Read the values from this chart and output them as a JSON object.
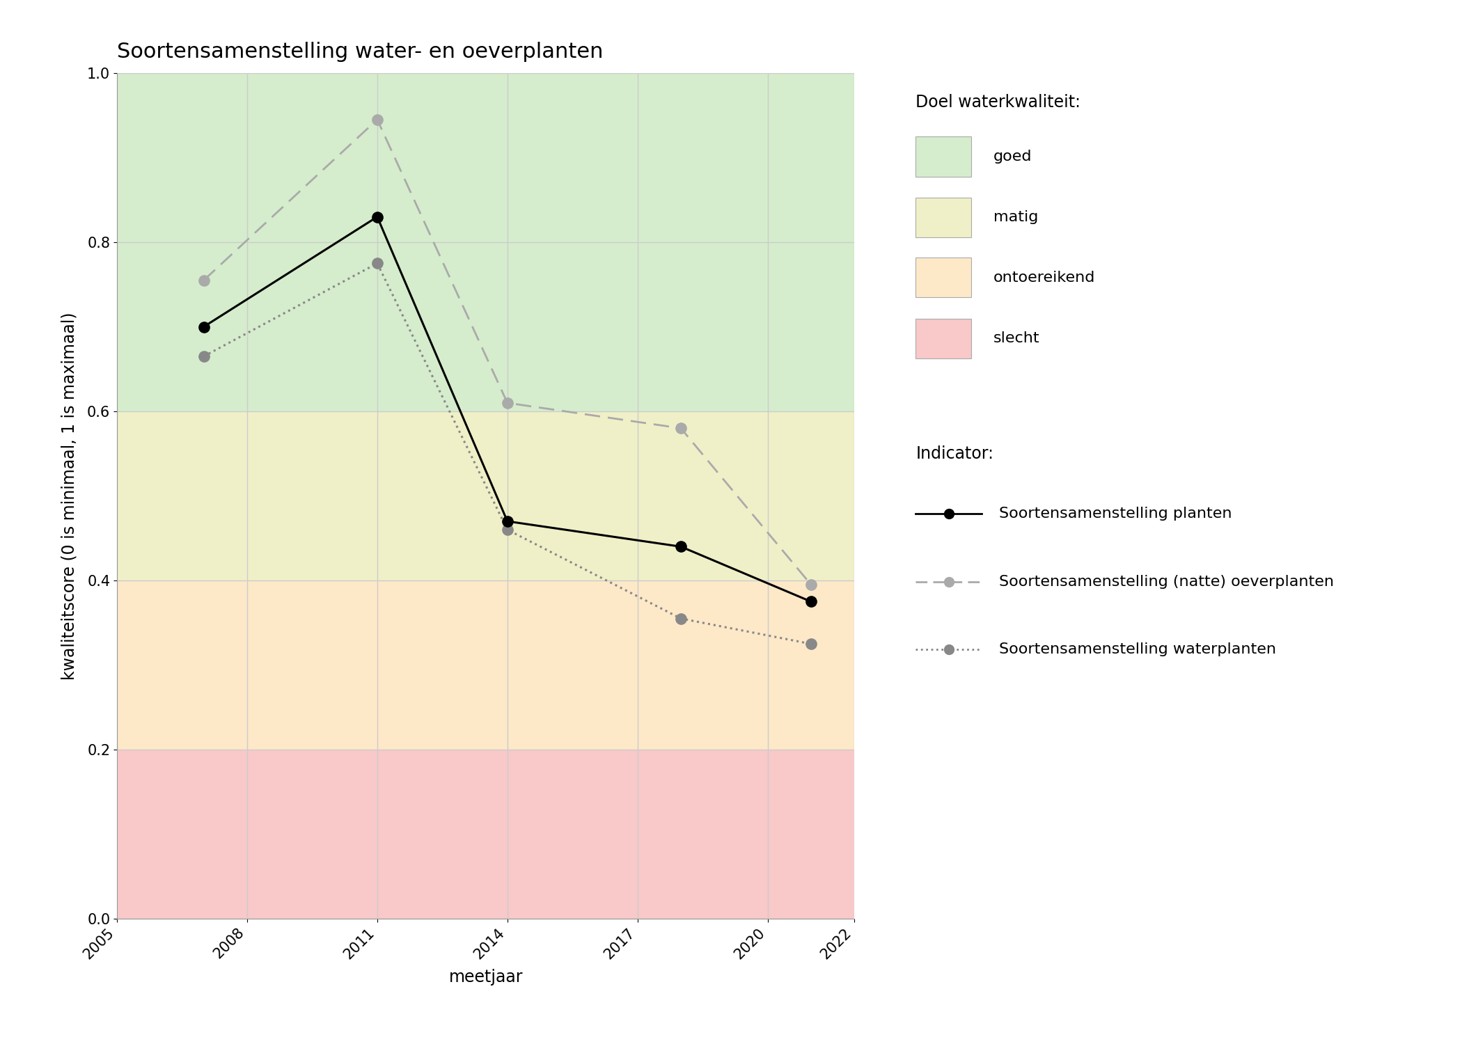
{
  "title": "Soortensamenstelling water- en oeverplanten",
  "xlabel": "meetjaar",
  "ylabel": "kwaliteitscore (0 is minimaal, 1 is maximaal)",
  "xlim": [
    2005,
    2022
  ],
  "ylim": [
    0.0,
    1.0
  ],
  "xticks": [
    2005,
    2008,
    2011,
    2014,
    2017,
    2020,
    2022
  ],
  "yticks": [
    0.0,
    0.2,
    0.4,
    0.6,
    0.8,
    1.0
  ],
  "bg_colors": {
    "goed": "#d5edcc",
    "matig": "#f0f0c8",
    "ontoereikend": "#fde8c8",
    "slecht": "#f9c8c8"
  },
  "bg_ranges": {
    "goed": [
      0.6,
      1.0
    ],
    "matig": [
      0.4,
      0.6
    ],
    "ontoereikend": [
      0.2,
      0.4
    ],
    "slecht": [
      0.0,
      0.2
    ]
  },
  "series_planten": {
    "years": [
      2007,
      2011,
      2014,
      2018,
      2021
    ],
    "values": [
      0.7,
      0.83,
      0.47,
      0.44,
      0.375
    ],
    "color": "#000000",
    "linestyle": "solid",
    "marker": "o",
    "markersize": 11,
    "linewidth": 2.2,
    "label": "Soortensamenstelling planten"
  },
  "series_oeverplanten": {
    "years": [
      2007,
      2011,
      2014,
      2018,
      2021
    ],
    "values": [
      0.755,
      0.945,
      0.61,
      0.58,
      0.395
    ],
    "color": "#aaaaaa",
    "linestyle": "dashed",
    "marker": "o",
    "markersize": 11,
    "linewidth": 2.0,
    "label": "Soortensamenstelling (natte) oeverplanten"
  },
  "series_waterplanten": {
    "years": [
      2007,
      2011,
      2014,
      2018,
      2021
    ],
    "values": [
      0.665,
      0.775,
      0.46,
      0.355,
      0.325
    ],
    "color": "#888888",
    "linestyle": "dotted",
    "marker": "o",
    "markersize": 11,
    "linewidth": 2.2,
    "label": "Soortensamenstelling waterplanten"
  },
  "grid_color": "#cccccc",
  "background_color": "#ffffff",
  "legend_bg_title": "Doel waterkwaliteit:",
  "legend_indicator_title": "Indicator:",
  "legend_bg_labels": [
    "goed",
    "matig",
    "ontoereikend",
    "slecht"
  ],
  "legend_bg_colors": [
    "#d5edcc",
    "#f0f0c8",
    "#fde8c8",
    "#f9c8c8"
  ],
  "title_fontsize": 22,
  "label_fontsize": 17,
  "tick_fontsize": 15,
  "legend_fontsize": 16
}
